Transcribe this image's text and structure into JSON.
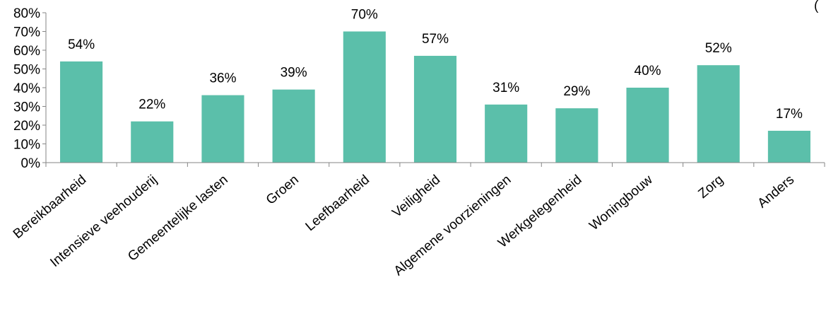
{
  "chart_data": {
    "type": "bar",
    "categories": [
      "Bereikbaarheid",
      "Intensieve veehouderij",
      "Gemeentelijke lasten",
      "Groen",
      "Leefbaarheid",
      "Veiligheid",
      "Algemene voorzieningen",
      "Werkgelegenheid",
      "Woningbouw",
      "Zorg",
      "Anders"
    ],
    "values": [
      54,
      22,
      36,
      39,
      70,
      57,
      31,
      29,
      40,
      52,
      17
    ],
    "value_labels": [
      "54%",
      "22%",
      "36%",
      "39%",
      "70%",
      "57%",
      "31%",
      "29%",
      "40%",
      "52%",
      "17%"
    ],
    "yticks": [
      0,
      10,
      20,
      30,
      40,
      50,
      60,
      70,
      80
    ],
    "ytick_labels": [
      "0%",
      "10%",
      "20%",
      "30%",
      "40%",
      "50%",
      "60%",
      "70%",
      "80%"
    ],
    "ylim": [
      0,
      80
    ],
    "title": "",
    "xlabel": "",
    "ylabel": "",
    "grid": false,
    "legend": "none",
    "corner_text": "(",
    "colors": {
      "bar": "#5bbfaa",
      "axis": "#868686"
    }
  }
}
